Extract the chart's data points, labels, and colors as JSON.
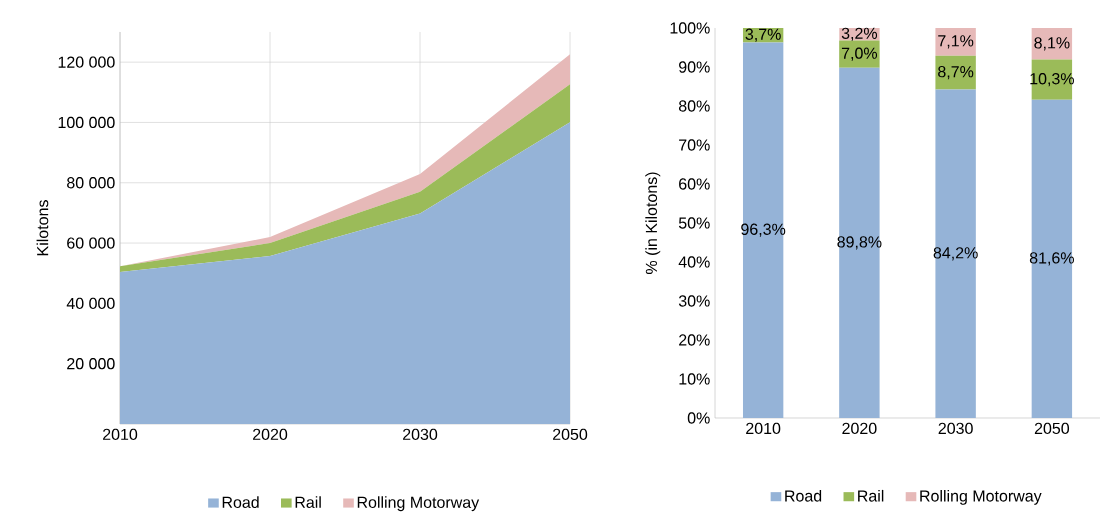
{
  "chart_data": [
    {
      "type": "area",
      "stacked": true,
      "categories": [
        "2010",
        "2020",
        "2030",
        "2050"
      ],
      "ylabel": "Kilotons",
      "series": [
        {
          "name": "Road",
          "color": "#95b3d7",
          "values": [
            50400,
            55700,
            69800,
            100100
          ]
        },
        {
          "name": "Rail",
          "color": "#9bbb59",
          "values": [
            1900,
            4300,
            7200,
            12600
          ]
        },
        {
          "name": "Rolling Motorway",
          "color": "#e6b9b8",
          "values": [
            0,
            2000,
            5900,
            9900
          ]
        }
      ],
      "ylim": [
        0,
        130000
      ],
      "yticks": [
        {
          "value": 20000,
          "label": "20 000"
        },
        {
          "value": 40000,
          "label": "40 000"
        },
        {
          "value": 60000,
          "label": "60 000"
        },
        {
          "value": 80000,
          "label": "80 000"
        },
        {
          "value": 100000,
          "label": "100 000"
        },
        {
          "value": 120000,
          "label": "120 000"
        }
      ],
      "grid": true,
      "legend": "bottom"
    },
    {
      "type": "bar",
      "stacked": true,
      "categories": [
        "2010",
        "2020",
        "2030",
        "2050"
      ],
      "ylabel": "% (in Kilotons)",
      "series": [
        {
          "name": "Road",
          "color": "#95b3d7",
          "values": [
            96.3,
            89.8,
            84.2,
            81.6
          ],
          "value_labels": [
            "96,3%",
            "89,8%",
            "84,2%",
            "81,6%"
          ]
        },
        {
          "name": "Rail",
          "color": "#9bbb59",
          "values": [
            3.7,
            7.0,
            8.7,
            10.3
          ],
          "value_labels": [
            "3,7%",
            "7,0%",
            "8,7%",
            "10,3%"
          ]
        },
        {
          "name": "Rolling Motorway",
          "color": "#e6b9b8",
          "values": [
            0,
            3.2,
            7.1,
            8.1
          ],
          "value_labels": [
            null,
            "3,2%",
            "7,1%",
            "8,1%"
          ]
        }
      ],
      "ylim": [
        0,
        100
      ],
      "yticks": [
        {
          "value": 0,
          "label": "0%"
        },
        {
          "value": 10,
          "label": "10%"
        },
        {
          "value": 20,
          "label": "20%"
        },
        {
          "value": 30,
          "label": "30%"
        },
        {
          "value": 40,
          "label": "40%"
        },
        {
          "value": 50,
          "label": "50%"
        },
        {
          "value": 60,
          "label": "60%"
        },
        {
          "value": 70,
          "label": "70%"
        },
        {
          "value": 80,
          "label": "80%"
        },
        {
          "value": 90,
          "label": "90%"
        },
        {
          "value": 100,
          "label": "100%"
        }
      ],
      "legend": "bottom"
    }
  ]
}
